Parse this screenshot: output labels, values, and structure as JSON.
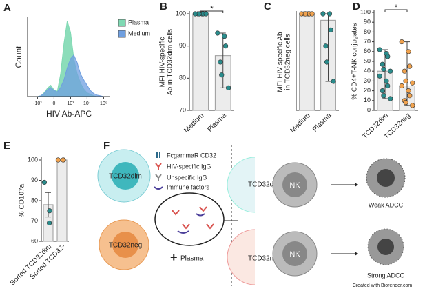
{
  "chart_data": [
    {
      "type": "area",
      "panel": "A",
      "ylabel": "Count",
      "xlabel": "HIV Ab-APC",
      "x": [
        -1.6,
        -1.4,
        -1.2,
        -1.0,
        -0.8,
        -0.6,
        -0.4,
        -0.2,
        0.0,
        0.2,
        0.4,
        0.6,
        0.8,
        1.0,
        1.2,
        1.4,
        1.6,
        1.8,
        2.0,
        2.2,
        2.4,
        2.6,
        2.8,
        3.0,
        3.2,
        3.4
      ],
      "xlim": [
        -1.6,
        3.4
      ],
      "xticks": [
        {
          "value": -1,
          "label": "-10³"
        },
        0,
        {
          "value": 1,
          "label": "10³"
        },
        {
          "value": 2,
          "label": "10⁴"
        },
        {
          "value": 3,
          "label": "10⁵"
        }
      ],
      "ylim": [
        0,
        105
      ],
      "legend": "top-right",
      "series": [
        {
          "name": "Plasma",
          "color": "#7fd9b3",
          "values": [
            0,
            0,
            0,
            0,
            1,
            5,
            11,
            15,
            9,
            7,
            30,
            70,
            100,
            85,
            50,
            30,
            18,
            10,
            5,
            3,
            1,
            0,
            0,
            0,
            0,
            0
          ]
        },
        {
          "name": "Medium",
          "color": "#6f9fe0",
          "values": [
            0,
            0,
            0,
            0,
            1,
            4,
            9,
            12,
            8,
            6,
            12,
            22,
            38,
            50,
            55,
            45,
            30,
            22,
            15,
            8,
            4,
            2,
            1,
            0,
            0,
            0
          ]
        }
      ]
    },
    {
      "type": "bar-dots",
      "panel": "B",
      "ylabel": [
        "MFI HIV-specific",
        "Ab in TCD32dim cells"
      ],
      "categories": [
        "Medium",
        "Plasma"
      ],
      "values": [
        100,
        87
      ],
      "points": [
        [
          100,
          100,
          100,
          100,
          100,
          100
        ],
        [
          94,
          93,
          90,
          85,
          81,
          77
        ]
      ],
      "point_colors": [
        "#2a8c8c",
        "#2a8c8c"
      ],
      "error_ranges": [
        [
          100,
          100
        ],
        [
          77,
          94
        ]
      ],
      "annotation": "*",
      "ylim": [
        70,
        100
      ],
      "yticks": [
        70,
        80,
        90,
        100
      ]
    },
    {
      "type": "bar-dots",
      "panel": "C",
      "ylabel": [
        "MFI HIV-specific Ab",
        "in TCD32neg cells"
      ],
      "categories": [
        "Medium",
        "Plasma"
      ],
      "values": [
        100,
        98
      ],
      "points": [
        [
          100,
          100,
          100,
          100,
          100,
          100
        ],
        [
          100,
          100,
          95,
          90,
          85,
          79
        ]
      ],
      "point_colors": [
        "#f0a24e",
        "#2a8c8c"
      ],
      "error_ranges": [
        [
          100,
          100
        ],
        [
          79,
          100
        ]
      ],
      "ylim": [
        70,
        100
      ]
    },
    {
      "type": "bar-dots",
      "panel": "D",
      "ylabel": [
        "% CD4+T-NK conjugates"
      ],
      "categories": [
        "TCD32dim",
        "TCD32neg"
      ],
      "values": [
        40,
        25
      ],
      "points": [
        [
          62,
          58,
          55,
          47,
          42,
          40,
          35,
          30,
          25,
          20,
          15,
          12
        ],
        [
          70,
          60,
          45,
          40,
          30,
          28,
          25,
          20,
          15,
          10,
          8,
          5
        ]
      ],
      "point_colors": [
        "#2a8c8c",
        "#f0a24e"
      ],
      "error_ranges": [
        [
          12,
          62
        ],
        [
          5,
          70
        ]
      ],
      "annotation": "*",
      "ylim": [
        0,
        100
      ],
      "yticks": [
        0,
        10,
        20,
        30,
        40,
        50,
        60,
        70,
        80,
        90,
        100
      ]
    },
    {
      "type": "bar-dots",
      "panel": "E",
      "ylabel": [
        "% CD107a"
      ],
      "categories": [
        "Sorted TCD32dim",
        "Sorted TCD32-"
      ],
      "values": [
        78,
        100
      ],
      "points": [
        [
          89,
          75,
          69
        ],
        [
          100,
          100,
          100
        ]
      ],
      "point_colors": [
        "#2a8c8c",
        "#f0a24e"
      ],
      "error_ranges": [
        [
          72,
          84
        ],
        [
          100,
          100
        ]
      ],
      "ylim": [
        60,
        100
      ],
      "yticks": [
        60,
        70,
        80,
        90,
        100
      ]
    }
  ],
  "diagram": {
    "panel": "F",
    "legend": [
      "FcgammaR CD32",
      "HIV-specific IgG",
      "Unspecific IgG",
      "Immune factors"
    ],
    "cells": [
      "TCD32dim",
      "TCD32neg"
    ],
    "plus": "+",
    "plasma": "Plasma",
    "nk": [
      "NK",
      "NK"
    ],
    "outcomes": [
      "Weak ADCC",
      "Strong ADCC"
    ],
    "credit": "Created with Biorender.com"
  }
}
